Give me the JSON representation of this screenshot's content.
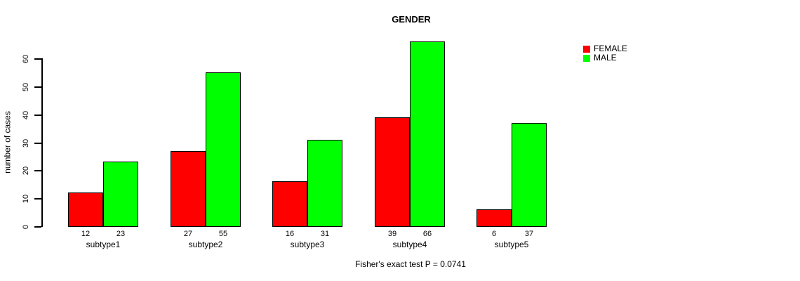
{
  "chart_data": {
    "type": "bar",
    "title": "GENDER",
    "xlabel": "",
    "ylabel": "number of cases",
    "categories": [
      "subtype1",
      "subtype2",
      "subtype3",
      "subtype4",
      "subtype5"
    ],
    "series": [
      {
        "name": "FEMALE",
        "color": "#ff0000",
        "values": [
          12,
          27,
          16,
          39,
          6
        ]
      },
      {
        "name": "MALE",
        "color": "#00ff00",
        "values": [
          23,
          55,
          31,
          66,
          37
        ]
      }
    ],
    "yticks": [
      0,
      10,
      20,
      30,
      40,
      50,
      60
    ],
    "ylim": [
      0,
      60
    ],
    "grid": false,
    "bar_value_labels_shown": true,
    "legend_position": "top-right",
    "caption": "Fisher's exact test P = 0.0741"
  },
  "colors": {
    "female": "#ff0000",
    "male": "#00ff00",
    "axis": "#000000",
    "background": "#ffffff"
  }
}
